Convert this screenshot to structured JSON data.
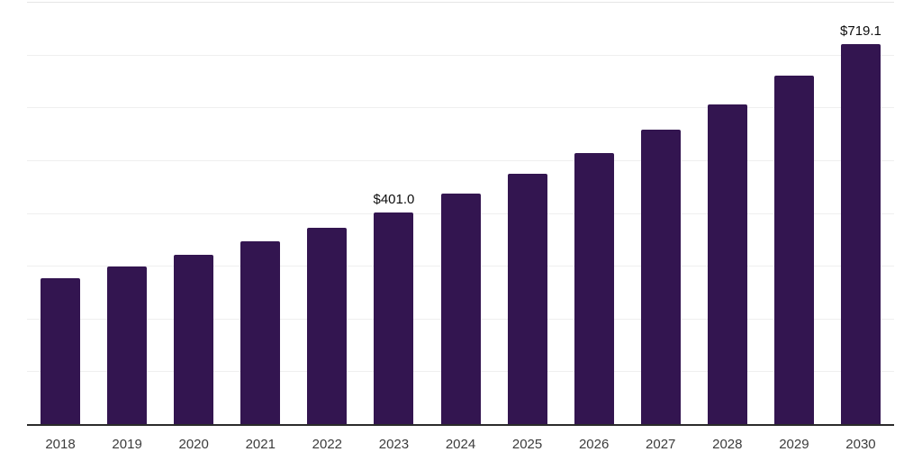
{
  "chart_data": {
    "type": "bar",
    "title": "",
    "xlabel": "",
    "ylabel": "",
    "categories": [
      "2018",
      "2019",
      "2020",
      "2021",
      "2022",
      "2023",
      "2024",
      "2025",
      "2026",
      "2027",
      "2028",
      "2029",
      "2030"
    ],
    "values": [
      276.6,
      297.9,
      320.9,
      345.7,
      372.3,
      401.0,
      435.9,
      473.8,
      513.5,
      557.5,
      605.5,
      659.5,
      719.1
    ],
    "data_labels": [
      "",
      "",
      "",
      "",
      "",
      "$401.0",
      "",
      "",
      "",
      "",
      "",
      "",
      "$719.1"
    ],
    "ylim": [
      0,
      800
    ],
    "grid_step": 100,
    "grid": true,
    "legend": false,
    "colors": {
      "bar": "#331550",
      "axis": "#2b2b2b",
      "gridline": "#efefef",
      "top_gridline": "#e5e5e5",
      "data_label": "#0d0d0d",
      "tick_label": "#3c3c3c",
      "background": "#ffffff"
    }
  }
}
